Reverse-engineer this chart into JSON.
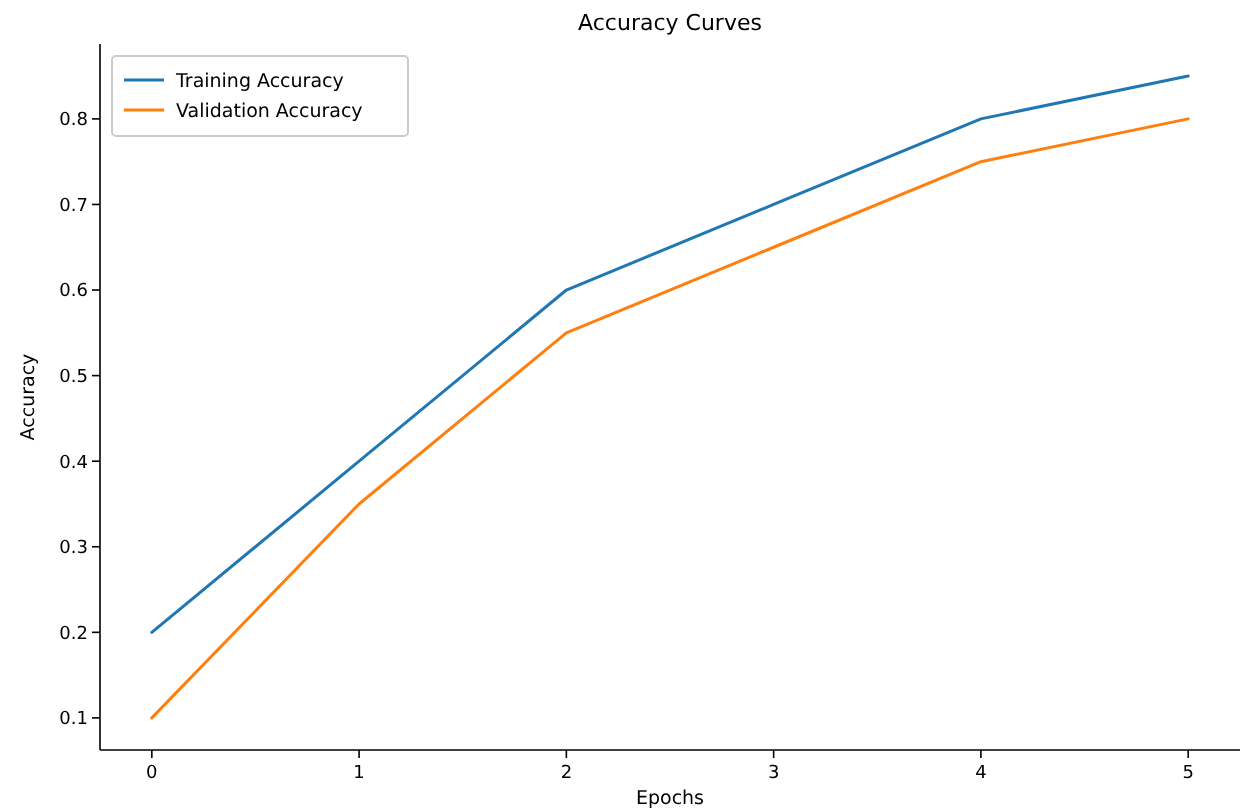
{
  "chart_data": {
    "type": "line",
    "title": "Accuracy Curves",
    "xlabel": "Epochs",
    "ylabel": "Accuracy",
    "x": [
      0,
      1,
      2,
      3,
      4,
      5
    ],
    "series": [
      {
        "name": "Training Accuracy",
        "color": "#1f77b4",
        "values": [
          0.2,
          0.4,
          0.6,
          0.7,
          0.8,
          0.85
        ]
      },
      {
        "name": "Validation Accuracy",
        "color": "#ff7f0e",
        "values": [
          0.1,
          0.35,
          0.55,
          0.65,
          0.75,
          0.8
        ]
      }
    ],
    "xlim": [
      -0.25,
      5.25
    ],
    "xticks": [
      0,
      1,
      2,
      3,
      4,
      5
    ],
    "ylim": [
      0.0625,
      0.8875
    ],
    "yticks": [
      0.1,
      0.2,
      0.3,
      0.4,
      0.5,
      0.6,
      0.7,
      0.8
    ],
    "grid": false,
    "legend": "top left",
    "marker": "none",
    "line_style": "solid"
  }
}
